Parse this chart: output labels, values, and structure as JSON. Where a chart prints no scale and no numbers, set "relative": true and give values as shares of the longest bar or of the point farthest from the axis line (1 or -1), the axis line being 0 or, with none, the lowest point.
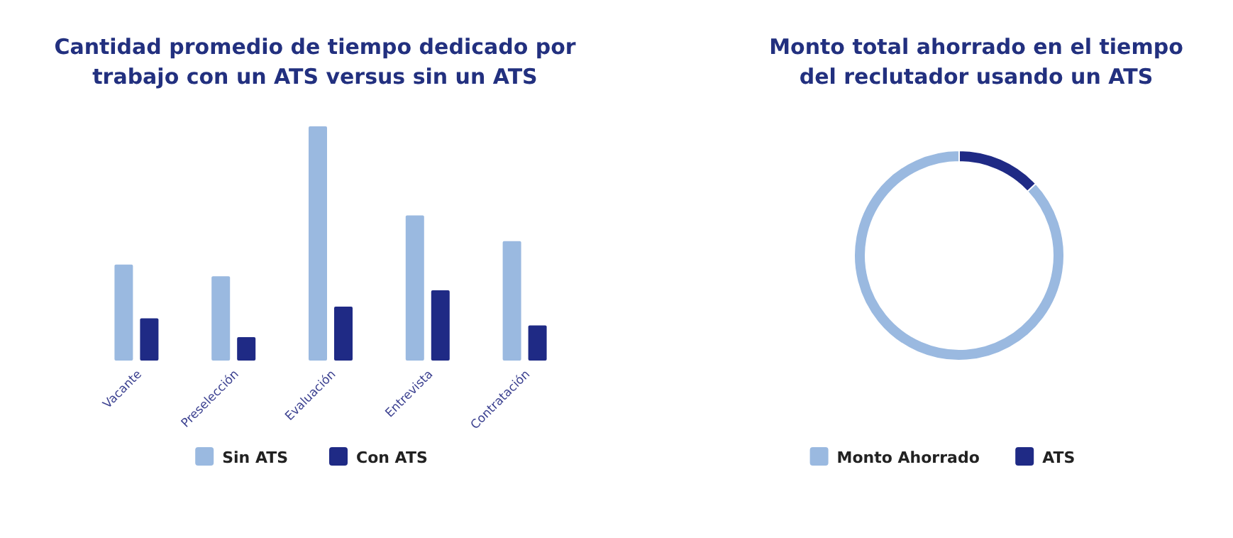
{
  "chart_data": [
    {
      "type": "bar",
      "title": "Cantidad promedio de tiempo dedicado por trabajo con un ATS versus sin un ATS",
      "categories": [
        "Vacante",
        "Preselección",
        "Evaluación",
        "Entrevista",
        "Contratación"
      ],
      "relative": true,
      "legend": "bottom",
      "series": [
        {
          "name": "Sin ATS",
          "color": "#9ab9e0",
          "values": [
            0.41,
            0.36,
            1,
            0.62,
            0.51
          ]
        },
        {
          "name": "Con ATS",
          "color": "#1f2a85",
          "values": [
            0.18,
            0.1,
            0.23,
            0.3,
            0.15
          ]
        }
      ]
    },
    {
      "type": "donut",
      "title": "Monto total ahorrado en el tiempo del reclutador usando un ATS",
      "legend": "bottom",
      "categories": [
        "Monto Ahorrado",
        "ATS"
      ],
      "values": [
        87,
        13
      ],
      "colors": [
        "#9ab9e0",
        "#1f2a85"
      ]
    }
  ]
}
